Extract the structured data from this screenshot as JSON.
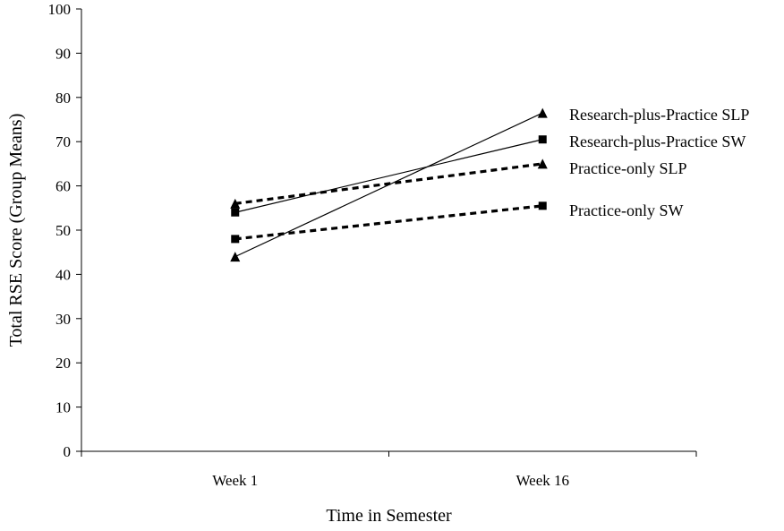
{
  "chart_data": {
    "type": "line",
    "title": "",
    "xlabel": "Time in Semester",
    "ylabel": "Total RSE Score (Group Means)",
    "categories": [
      "Week 1",
      "Week 16"
    ],
    "ylim": [
      0,
      100
    ],
    "yticks": [
      0,
      10,
      20,
      30,
      40,
      50,
      60,
      70,
      80,
      90,
      100
    ],
    "grid": false,
    "legend_placement": "right, labels at line ends",
    "series": [
      {
        "name": "Research-plus-Practice SLP",
        "values": [
          44,
          76.5
        ],
        "marker": "triangle",
        "line": "solid",
        "color": "#000000"
      },
      {
        "name": "Research-plus-Practice SW",
        "values": [
          54,
          70.5
        ],
        "marker": "square",
        "line": "solid",
        "color": "#000000"
      },
      {
        "name": "Practice-only SLP",
        "values": [
          56,
          65
        ],
        "marker": "triangle",
        "line": "dashed",
        "color": "#000000"
      },
      {
        "name": "Practice-only SW",
        "values": [
          48,
          55.5
        ],
        "marker": "square",
        "line": "dashed",
        "color": "#000000"
      }
    ]
  }
}
